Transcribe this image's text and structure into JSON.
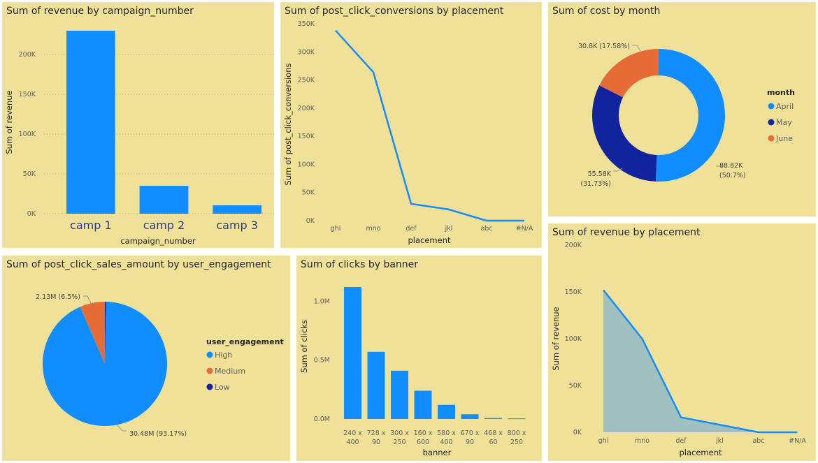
{
  "colors": {
    "primary": "#118dff",
    "dark_blue": "#12239e",
    "orange": "#e66c37",
    "panel_bg": "#f0e198",
    "area_fill": "#9bbfbf"
  },
  "panels": {
    "p1": {
      "title": "Sum of revenue by campaign_number"
    },
    "p2": {
      "title": "Sum of post_click_conversions by placement"
    },
    "p3": {
      "title": "Sum of cost by month"
    },
    "p4": {
      "title": "Sum of post_click_sales_amount by user_engagement"
    },
    "p5": {
      "title": "Sum of clicks by banner"
    },
    "p6": {
      "title": "Sum of revenue by placement"
    }
  },
  "chart_data": [
    {
      "type": "bar",
      "title": "Sum of revenue by campaign_number",
      "xlabel": "campaign_number",
      "ylabel": "Sum of revenue",
      "categories": [
        "camp 1",
        "camp 2",
        "camp 3"
      ],
      "values": [
        230000,
        35000,
        10500
      ],
      "yticks": [
        0,
        50000,
        100000,
        150000,
        200000
      ],
      "ytick_labels": [
        "0K",
        "50K",
        "100K",
        "150K",
        "200K"
      ],
      "ylim": [
        0,
        230000
      ],
      "grid": true
    },
    {
      "type": "line",
      "title": "Sum of post_click_conversions by placement",
      "xlabel": "placement",
      "ylabel": "Sum of post_click_conversions",
      "categories": [
        "ghi",
        "mno",
        "def",
        "jkl",
        "abc",
        "#N/A"
      ],
      "values": [
        338000,
        264000,
        30000,
        20000,
        0,
        0
      ],
      "yticks": [
        0,
        50000,
        100000,
        150000,
        200000,
        250000,
        300000,
        350000
      ],
      "ytick_labels": [
        "0K",
        "50K",
        "100K",
        "150K",
        "200K",
        "250K",
        "300K",
        "350K"
      ],
      "ylim": [
        0,
        350000
      ],
      "grid": false
    },
    {
      "type": "pie",
      "subtype": "donut",
      "title": "Sum of cost by month",
      "legend_title": "month",
      "legend_position": "right",
      "labels": [
        "April",
        "May",
        "June"
      ],
      "values": [
        88820,
        55580,
        30800
      ],
      "data_labels": [
        "88.82K (50.7%)",
        "55.58K (31.73%)",
        "30.8K (17.58%)"
      ],
      "colors": [
        "#118dff",
        "#12239e",
        "#e66c37"
      ]
    },
    {
      "type": "pie",
      "title": "Sum of post_click_sales_amount by user_engagement",
      "legend_title": "user_engagement",
      "legend_position": "right",
      "labels": [
        "High",
        "Medium",
        "Low"
      ],
      "values": [
        30.48,
        2.13,
        0.1
      ],
      "data_labels": [
        "30.48M (93.17%)",
        "2.13M (6.5%)",
        ""
      ],
      "colors": [
        "#118dff",
        "#e66c37",
        "#12239e"
      ]
    },
    {
      "type": "bar",
      "title": "Sum of clicks by banner",
      "xlabel": "banner",
      "ylabel": "Sum of clicks",
      "categories": [
        [
          "240 x",
          "400"
        ],
        [
          "728 x",
          "90"
        ],
        [
          "300 x",
          "250"
        ],
        [
          "160 x",
          "600"
        ],
        [
          "580 x",
          "400"
        ],
        [
          "670 x",
          "90"
        ],
        [
          "468 x",
          "60"
        ],
        [
          "800 x",
          "250"
        ]
      ],
      "values": [
        1120000,
        570000,
        410000,
        240000,
        120000,
        40000,
        8000,
        5000
      ],
      "yticks": [
        0,
        500000,
        1000000
      ],
      "ytick_labels": [
        "0.0M",
        "0.5M",
        "1.0M"
      ],
      "ylim": [
        0,
        1120000
      ],
      "grid": false
    },
    {
      "type": "area",
      "title": "Sum of revenue by placement",
      "xlabel": "placement",
      "ylabel": "Sum of revenue",
      "categories": [
        "ghi",
        "mno",
        "def",
        "jkl",
        "abc",
        "#N/A"
      ],
      "values": [
        152000,
        100000,
        16000,
        8000,
        0,
        0
      ],
      "yticks": [
        0,
        50000,
        100000,
        150000,
        200000
      ],
      "ytick_labels": [
        "0K",
        "50K",
        "100K",
        "150K",
        "200K"
      ],
      "ylim": [
        0,
        200000
      ],
      "grid": false
    }
  ]
}
